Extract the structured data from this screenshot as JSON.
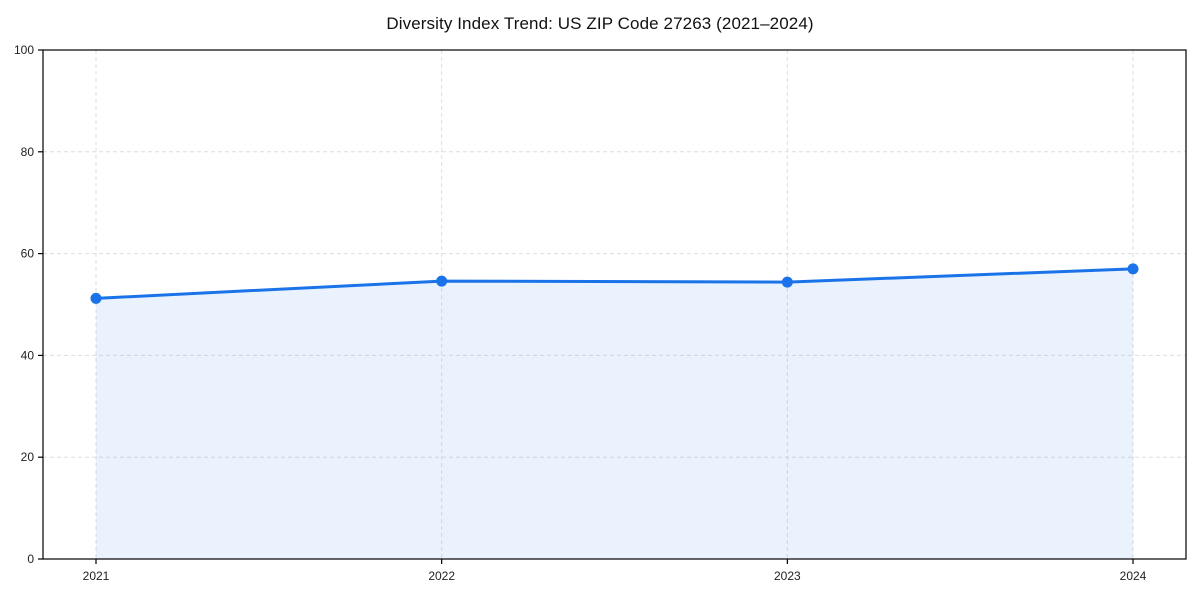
{
  "chart_data": {
    "type": "area",
    "title": "Diversity Index Trend: US ZIP Code 27263 (2021–2024)",
    "categories": [
      "2021",
      "2022",
      "2023",
      "2024"
    ],
    "series": [
      {
        "name": "Diversity Index",
        "values": [
          51.2,
          54.6,
          54.4,
          57.0
        ]
      }
    ],
    "xlabel": "",
    "ylabel": "",
    "ylim": [
      0,
      100
    ],
    "y_ticks": [
      0,
      20,
      40,
      60,
      80,
      100
    ],
    "grid": "dashed, horizontal and vertical at ticks",
    "legend_position": "none",
    "colors": {
      "line": "#1a73e8",
      "marker": "#1a73e8",
      "fill": "#1a73e8",
      "fill_opacity": 0.09,
      "grid": "#dedede",
      "axis": "#000000",
      "tick_label": "#222222",
      "background": "#ffffff"
    }
  }
}
